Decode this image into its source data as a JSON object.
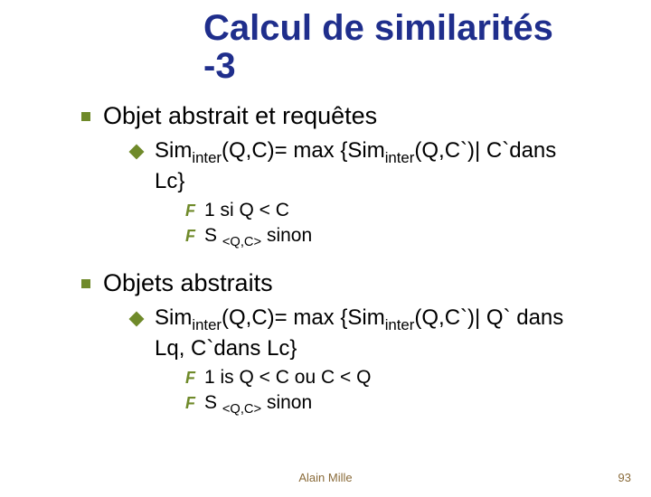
{
  "title_line1": "Calcul de similarités",
  "title_line2": "-3",
  "section1": {
    "heading": "Objet abstrait et requêtes",
    "formula_pre": "Sim",
    "formula_sub1": "inter",
    "formula_mid": "(Q,C)=  max {Sim",
    "formula_sub2": "inter",
    "formula_post": "(Q,C`)| C`dans Lc}",
    "cond1": "1 si Q < C",
    "cond2_pre": "S ",
    "cond2_sub": "<Q,C>",
    "cond2_post": " sinon"
  },
  "section2": {
    "heading": "Objets abstraits",
    "formula_pre": "Sim",
    "formula_sub1": "inter",
    "formula_mid": "(Q,C)=  max {Sim",
    "formula_sub2": "inter",
    "formula_post": "(Q,C`)| Q` dans Lq, C`dans Lc}",
    "cond1": "1 is Q < C ou C < Q",
    "cond2_pre": "S ",
    "cond2_sub": "<Q,C>",
    "cond2_post": " sinon"
  },
  "footer_author": "Alain Mille",
  "slide_number": "93"
}
